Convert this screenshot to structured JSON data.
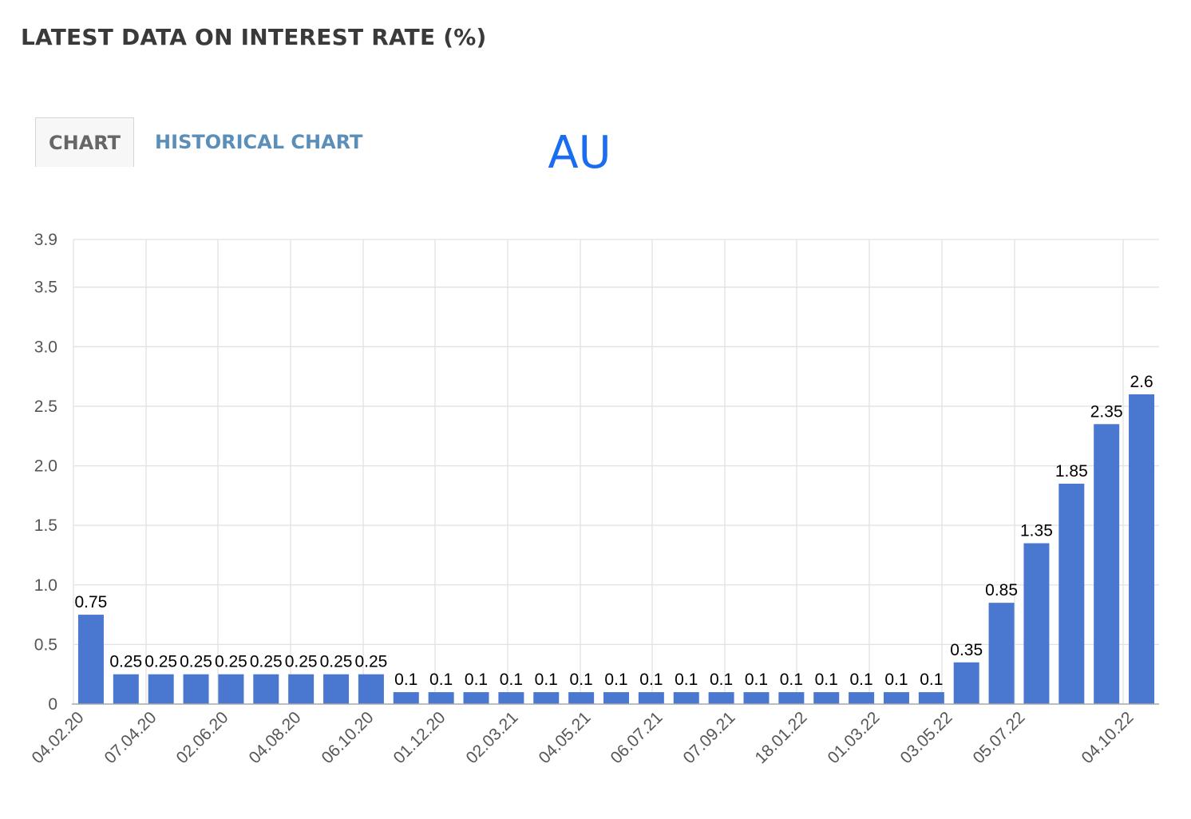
{
  "header": {
    "title": "LATEST DATA ON INTEREST RATE (%)"
  },
  "tabs": [
    {
      "label": "CHART",
      "active": true
    },
    {
      "label": "HISTORICAL CHART",
      "active": false
    }
  ],
  "colors": {
    "bar": "#4a78d0",
    "chart_title": "#1a6cf0",
    "active_tab_text": "#666666",
    "inactive_tab_text": "#5b8fb9",
    "grid": "#e2e2e2",
    "axis_text": "#555555"
  },
  "chart_data": {
    "type": "bar",
    "title": "AU",
    "xlabel": "",
    "ylabel": "",
    "ylim": [
      0,
      3.9
    ],
    "yticks": [
      0,
      0.5,
      1.0,
      1.5,
      2.0,
      2.5,
      3.0,
      3.5,
      3.9
    ],
    "ytick_labels": [
      "0",
      "0.5",
      "1.0",
      "1.5",
      "2.0",
      "2.5",
      "3.0",
      "3.5",
      "3.9"
    ],
    "grid": true,
    "legend": "none",
    "x_tick_labels": [
      "04.02.20",
      "07.04.20",
      "02.06.20",
      "04.08.20",
      "06.10.20",
      "01.12.20",
      "02.03.21",
      "04.05.21",
      "06.07.21",
      "07.09.21",
      "18.01.22",
      "01.03.22",
      "03.05.22",
      "05.07.22",
      "04.10.22"
    ],
    "values": [
      0.75,
      0.25,
      0.25,
      0.25,
      0.25,
      0.25,
      0.25,
      0.25,
      0.25,
      0.1,
      0.1,
      0.1,
      0.1,
      0.1,
      0.1,
      0.1,
      0.1,
      0.1,
      0.1,
      0.1,
      0.1,
      0.1,
      0.1,
      0.1,
      0.1,
      0.35,
      0.85,
      1.35,
      1.85,
      2.35,
      2.6
    ],
    "data_labels": [
      "0.75",
      "0.25",
      "0.25",
      "0.25",
      "0.25",
      "0.25",
      "0.25",
      "0.25",
      "0.25",
      "0.1",
      "0.1",
      "0.1",
      "0.1",
      "0.1",
      "0.1",
      "0.1",
      "0.1",
      "0.1",
      "0.1",
      "0.1",
      "0.1",
      "0.1",
      "0.1",
      "0.1",
      "0.1",
      "0.35",
      "0.85",
      "1.35",
      "1.85",
      "2.35",
      "2.6"
    ]
  }
}
